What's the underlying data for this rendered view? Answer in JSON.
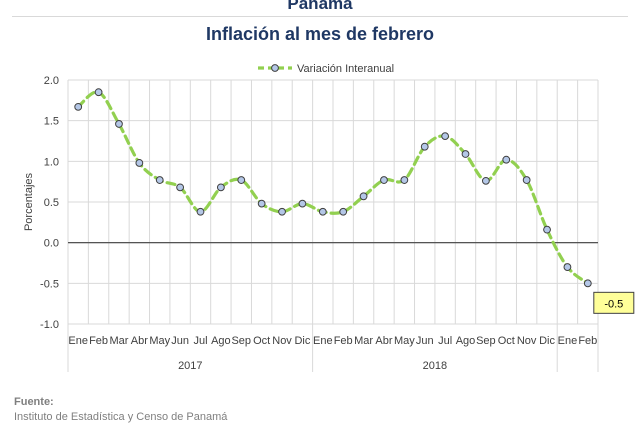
{
  "header": {
    "title": "Panamá",
    "subtitle": "Inflación al mes de febrero"
  },
  "chart_data": {
    "type": "line",
    "title": "Inflación al mes de febrero",
    "ylabel": "Porcentajes",
    "xlabel": "",
    "ylim": [
      -1.0,
      2.0
    ],
    "yticks": [
      "2.0",
      "1.5",
      "1.0",
      "0.5",
      "0.0",
      "-0.5",
      "-1.0"
    ],
    "ytick_values": [
      2.0,
      1.5,
      1.0,
      0.5,
      0.0,
      -0.5,
      -1.0
    ],
    "categories": [
      "Ene",
      "Feb",
      "Mar",
      "Abr",
      "May",
      "Jun",
      "Jul",
      "Ago",
      "Sep",
      "Oct",
      "Nov",
      "Dic",
      "Ene",
      "Feb",
      "Mar",
      "Abr",
      "May",
      "Jun",
      "Jul",
      "Ago",
      "Sep",
      "Oct",
      "Nov",
      "Dic",
      "Ene",
      "Feb"
    ],
    "groups": [
      {
        "label": "2017",
        "count": 12
      },
      {
        "label": "2018",
        "count": 12
      },
      {
        "label": "",
        "count": 2
      }
    ],
    "series": [
      {
        "name": "Variación Interanual",
        "values": [
          1.67,
          1.85,
          1.46,
          0.98,
          0.77,
          0.68,
          0.38,
          0.68,
          0.77,
          0.48,
          0.38,
          0.48,
          0.38,
          0.38,
          0.57,
          0.77,
          0.77,
          1.18,
          1.31,
          1.09,
          0.76,
          1.02,
          0.77,
          0.16,
          -0.3,
          -0.5
        ]
      }
    ],
    "data_label": {
      "index": 25,
      "text": "-0.5"
    },
    "legend": "top-center",
    "grid": true,
    "colors": {
      "line": "#92d050",
      "marker_fill": "#b4c7e7",
      "marker_edge": "#404040",
      "label_bg": "#ffff99"
    }
  },
  "source": {
    "label": "Fuente:",
    "text": "Instituto de Estadística y Censo de Panamá"
  }
}
